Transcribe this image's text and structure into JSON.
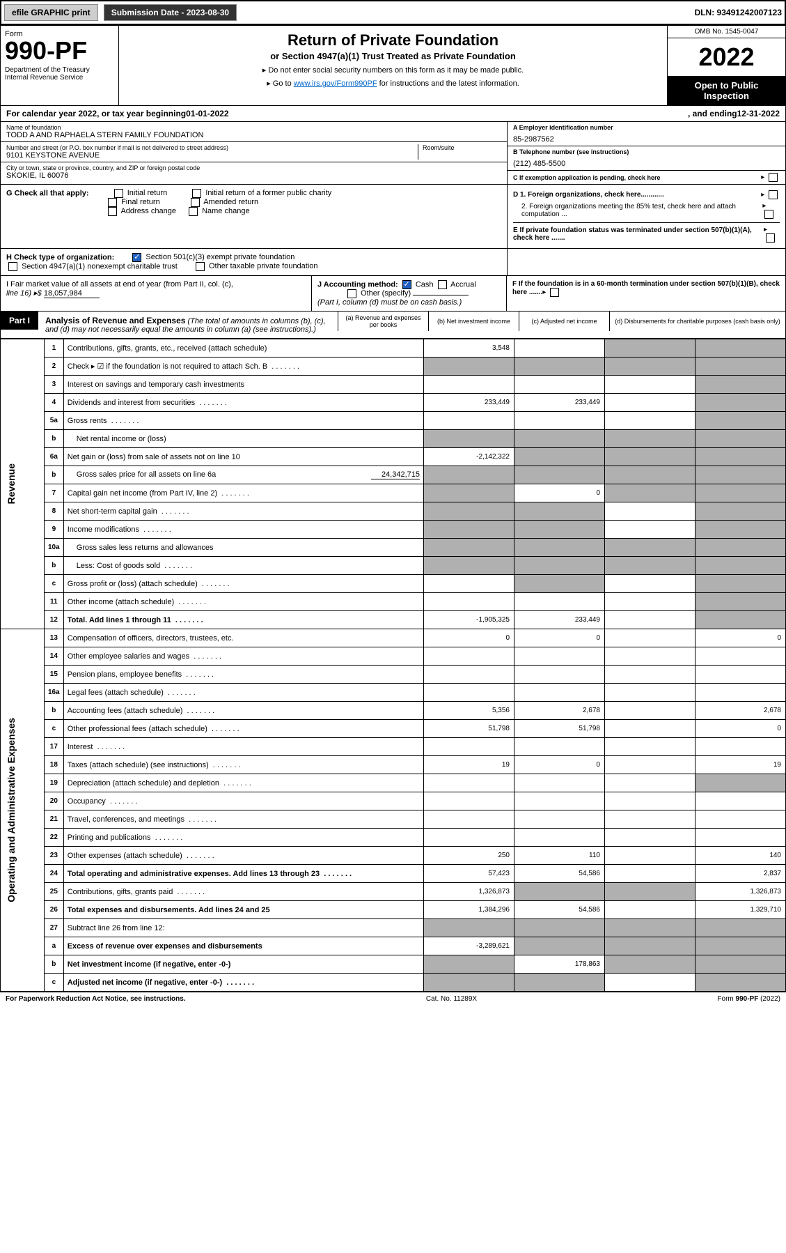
{
  "header_bar": {
    "efile": "efile GRAPHIC print",
    "submission": "Submission Date - 2023-08-30",
    "dln": "DLN: 93491242007123"
  },
  "form_header": {
    "form_word": "Form",
    "form_number": "990-PF",
    "dept": "Department of the Treasury\nInternal Revenue Service",
    "title": "Return of Private Foundation",
    "subtitle1": "or Section 4947(a)(1) Trust Treated as Private Foundation",
    "subtitle2a": "▸ Do not enter social security numbers on this form as it may be made public.",
    "subtitle2b_prefix": "▸ Go to ",
    "subtitle2b_link": "www.irs.gov/Form990PF",
    "subtitle2b_suffix": " for instructions and the latest information.",
    "omb": "OMB No. 1545-0047",
    "year": "2022",
    "open": "Open to Public Inspection"
  },
  "calyear": {
    "prefix": "For calendar year 2022, or tax year beginning ",
    "begin": "01-01-2022",
    "mid": ", and ending ",
    "end": "12-31-2022"
  },
  "identity": {
    "name_lbl": "Name of foundation",
    "name": "TODD A AND RAPHAELA STERN FAMILY FOUNDATION",
    "addr_lbl": "Number and street (or P.O. box number if mail is not delivered to street address)",
    "addr": "9101 KEYSTONE AVENUE",
    "room_lbl": "Room/suite",
    "city_lbl": "City or town, state or province, country, and ZIP or foreign postal code",
    "city": "SKOKIE, IL  60076",
    "ein_lbl": "A Employer identification number",
    "ein": "85-2987562",
    "phone_lbl": "B Telephone number (see instructions)",
    "phone": "(212) 485-5500",
    "c_lbl": "C If exemption application is pending, check here"
  },
  "g_section": {
    "prefix": "G Check all that apply:",
    "opts": [
      "Initial return",
      "Final return",
      "Address change",
      "Initial return of a former public charity",
      "Amended return",
      "Name change"
    ]
  },
  "d_section": {
    "d1": "D 1. Foreign organizations, check here............",
    "d2": "2. Foreign organizations meeting the 85% test, check here and attach computation ...",
    "e": "E  If private foundation status was terminated under section 507(b)(1)(A), check here .......",
    "f": "F  If the foundation is in a 60-month termination under section 507(b)(1)(B), check here ......."
  },
  "h_section": {
    "prefix": "H Check type of organization:",
    "opt1": "Section 501(c)(3) exempt private foundation",
    "opt2": "Section 4947(a)(1) nonexempt charitable trust",
    "opt3": "Other taxable private foundation"
  },
  "i_section": {
    "prefix": "I Fair market value of all assets at end of year (from Part II, col. (c),",
    "line16_lbl": "line 16) ▸$",
    "line16_val": "18,057,984"
  },
  "j_section": {
    "prefix": "J Accounting method:",
    "cash": "Cash",
    "accrual": "Accrual",
    "other": "Other (specify)",
    "note": "(Part I, column (d) must be on cash basis.)"
  },
  "part1": {
    "tag": "Part I",
    "title": "Analysis of Revenue and Expenses",
    "title_note": " (The total of amounts in columns (b), (c), and (d) may not necessarily equal the amounts in column (a) (see instructions).)",
    "col_a": "(a) Revenue and expenses per books",
    "col_b": "(b) Net investment income",
    "col_c": "(c) Adjusted net income",
    "col_d": "(d) Disbursements for charitable purposes (cash basis only)"
  },
  "side_labels": {
    "revenue": "Revenue",
    "expenses": "Operating and Administrative Expenses"
  },
  "rows": [
    {
      "n": "1",
      "desc": "Contributions, gifts, grants, etc., received (attach schedule)",
      "a": "3,548",
      "b": "",
      "c": "grey",
      "d": "grey"
    },
    {
      "n": "2",
      "desc": "Check ▸ ☑ if the foundation is not required to attach Sch. B",
      "a": "grey",
      "b": "grey",
      "c": "grey",
      "d": "grey",
      "dots": true
    },
    {
      "n": "3",
      "desc": "Interest on savings and temporary cash investments",
      "a": "",
      "b": "",
      "c": "",
      "d": "grey"
    },
    {
      "n": "4",
      "desc": "Dividends and interest from securities",
      "a": "233,449",
      "b": "233,449",
      "c": "",
      "d": "grey",
      "dots": true
    },
    {
      "n": "5a",
      "desc": "Gross rents",
      "a": "",
      "b": "",
      "c": "",
      "d": "grey",
      "dots": true
    },
    {
      "n": "b",
      "desc": "Net rental income or (loss)",
      "a": "grey",
      "b": "grey",
      "c": "grey",
      "d": "grey",
      "inset": true
    },
    {
      "n": "6a",
      "desc": "Net gain or (loss) from sale of assets not on line 10",
      "a": "-2,142,322",
      "b": "grey",
      "c": "grey",
      "d": "grey"
    },
    {
      "n": "b",
      "desc": "Gross sales price for all assets on line 6a",
      "a": "grey",
      "b": "grey",
      "c": "grey",
      "d": "grey",
      "inset": true,
      "inline_val": "24,342,715"
    },
    {
      "n": "7",
      "desc": "Capital gain net income (from Part IV, line 2)",
      "a": "grey",
      "b": "0",
      "c": "grey",
      "d": "grey",
      "dots": true
    },
    {
      "n": "8",
      "desc": "Net short-term capital gain",
      "a": "grey",
      "b": "grey",
      "c": "",
      "d": "grey",
      "dots": true
    },
    {
      "n": "9",
      "desc": "Income modifications",
      "a": "grey",
      "b": "grey",
      "c": "",
      "d": "grey",
      "dots": true
    },
    {
      "n": "10a",
      "desc": "Gross sales less returns and allowances",
      "a": "grey",
      "b": "grey",
      "c": "grey",
      "d": "grey",
      "inset": true
    },
    {
      "n": "b",
      "desc": "Less: Cost of goods sold",
      "a": "grey",
      "b": "grey",
      "c": "grey",
      "d": "grey",
      "inset": true,
      "dots": true
    },
    {
      "n": "c",
      "desc": "Gross profit or (loss) (attach schedule)",
      "a": "",
      "b": "grey",
      "c": "",
      "d": "grey",
      "dots": true
    },
    {
      "n": "11",
      "desc": "Other income (attach schedule)",
      "a": "",
      "b": "",
      "c": "",
      "d": "grey",
      "dots": true
    },
    {
      "n": "12",
      "desc": "Total. Add lines 1 through 11",
      "a": "-1,905,325",
      "b": "233,449",
      "c": "",
      "d": "grey",
      "bold": true,
      "dots": true
    },
    {
      "n": "13",
      "desc": "Compensation of officers, directors, trustees, etc.",
      "a": "0",
      "b": "0",
      "c": "",
      "d": "0"
    },
    {
      "n": "14",
      "desc": "Other employee salaries and wages",
      "a": "",
      "b": "",
      "c": "",
      "d": "",
      "dots": true
    },
    {
      "n": "15",
      "desc": "Pension plans, employee benefits",
      "a": "",
      "b": "",
      "c": "",
      "d": "",
      "dots": true
    },
    {
      "n": "16a",
      "desc": "Legal fees (attach schedule)",
      "a": "",
      "b": "",
      "c": "",
      "d": "",
      "dots": true
    },
    {
      "n": "b",
      "desc": "Accounting fees (attach schedule)",
      "a": "5,356",
      "b": "2,678",
      "c": "",
      "d": "2,678",
      "dots": true
    },
    {
      "n": "c",
      "desc": "Other professional fees (attach schedule)",
      "a": "51,798",
      "b": "51,798",
      "c": "",
      "d": "0",
      "dots": true
    },
    {
      "n": "17",
      "desc": "Interest",
      "a": "",
      "b": "",
      "c": "",
      "d": "",
      "dots": true
    },
    {
      "n": "18",
      "desc": "Taxes (attach schedule) (see instructions)",
      "a": "19",
      "b": "0",
      "c": "",
      "d": "19",
      "dots": true
    },
    {
      "n": "19",
      "desc": "Depreciation (attach schedule) and depletion",
      "a": "",
      "b": "",
      "c": "",
      "d": "grey",
      "dots": true
    },
    {
      "n": "20",
      "desc": "Occupancy",
      "a": "",
      "b": "",
      "c": "",
      "d": "",
      "dots": true
    },
    {
      "n": "21",
      "desc": "Travel, conferences, and meetings",
      "a": "",
      "b": "",
      "c": "",
      "d": "",
      "dots": true
    },
    {
      "n": "22",
      "desc": "Printing and publications",
      "a": "",
      "b": "",
      "c": "",
      "d": "",
      "dots": true
    },
    {
      "n": "23",
      "desc": "Other expenses (attach schedule)",
      "a": "250",
      "b": "110",
      "c": "",
      "d": "140",
      "dots": true
    },
    {
      "n": "24",
      "desc": "Total operating and administrative expenses. Add lines 13 through 23",
      "a": "57,423",
      "b": "54,586",
      "c": "",
      "d": "2,837",
      "bold": true,
      "dots": true,
      "tall": true
    },
    {
      "n": "25",
      "desc": "Contributions, gifts, grants paid",
      "a": "1,326,873",
      "b": "grey",
      "c": "grey",
      "d": "1,326,873",
      "dots": true
    },
    {
      "n": "26",
      "desc": "Total expenses and disbursements. Add lines 24 and 25",
      "a": "1,384,296",
      "b": "54,586",
      "c": "",
      "d": "1,329,710",
      "bold": true,
      "tall": true
    },
    {
      "n": "27",
      "desc": "Subtract line 26 from line 12:",
      "a": "grey",
      "b": "grey",
      "c": "grey",
      "d": "grey"
    },
    {
      "n": "a",
      "desc": "Excess of revenue over expenses and disbursements",
      "a": "-3,289,621",
      "b": "grey",
      "c": "grey",
      "d": "grey",
      "bold": true
    },
    {
      "n": "b",
      "desc": "Net investment income (if negative, enter -0-)",
      "a": "grey",
      "b": "178,863",
      "c": "grey",
      "d": "grey",
      "bold": true
    },
    {
      "n": "c",
      "desc": "Adjusted net income (if negative, enter -0-)",
      "a": "grey",
      "b": "grey",
      "c": "",
      "d": "grey",
      "bold": true,
      "dots": true
    }
  ],
  "footer": {
    "left": "For Paperwork Reduction Act Notice, see instructions.",
    "mid": "Cat. No. 11289X",
    "right": "Form 990-PF (2022)"
  }
}
